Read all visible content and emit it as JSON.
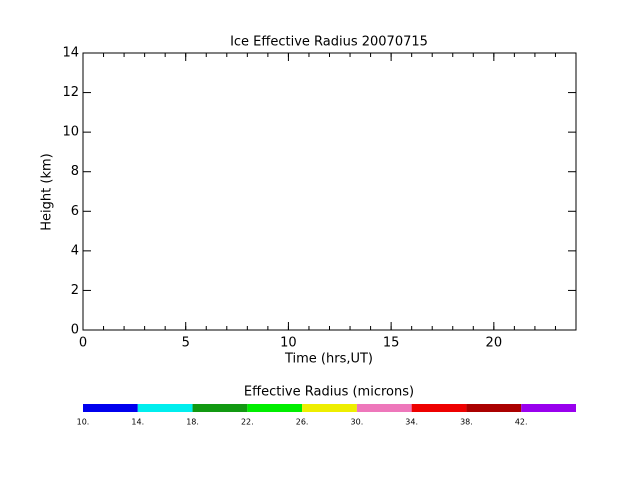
{
  "chart_data": {
    "type": "line",
    "title": "Ice Effective Radius 20070715",
    "x_label": "Time (hrs,UT)",
    "y_label": "Height (km)",
    "xlim": [
      0,
      24
    ],
    "xticks": [
      0,
      5,
      10,
      15,
      20
    ],
    "xminor": 1,
    "ylim": [
      0,
      14
    ],
    "yticks": [
      0,
      2,
      4,
      6,
      8,
      10,
      12,
      14
    ],
    "colorbar": {
      "title": "Effective Radius (microns)",
      "lim": [
        10,
        46
      ],
      "ticks": [
        {
          "value": 10,
          "label": "10."
        },
        {
          "value": 14,
          "label": "14."
        },
        {
          "value": 18,
          "label": "18."
        },
        {
          "value": 22,
          "label": "22."
        },
        {
          "value": 26,
          "label": "26."
        },
        {
          "value": 30,
          "label": "30."
        },
        {
          "value": 34,
          "label": "34."
        },
        {
          "value": 38,
          "label": "38."
        },
        {
          "value": 42,
          "label": "42."
        }
      ],
      "colors": [
        "#0000ee",
        "#00eeee",
        "#119911",
        "#00ee00",
        "#eeee00",
        "#ee77bb",
        "#ee0000",
        "#aa0000",
        "#9900ee"
      ]
    }
  }
}
